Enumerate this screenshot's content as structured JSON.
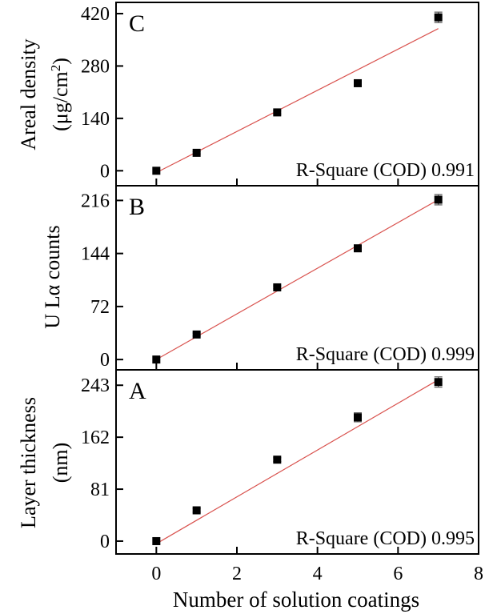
{
  "chart_data": [
    {
      "type": "scatter",
      "panel_label": "C",
      "ylabel_main": "Areal density",
      "ylabel_unit_prefix": "(μg/cm",
      "ylabel_unit_sup": "2",
      "ylabel_unit_suffix": ")",
      "xlim": [
        -1,
        8
      ],
      "ylim": [
        -40,
        450
      ],
      "yticks": [
        0,
        140,
        280,
        420
      ],
      "ytick_labels": [
        "0",
        "140",
        "280",
        "420"
      ],
      "points": [
        {
          "x": 0,
          "y": 0,
          "err": 0
        },
        {
          "x": 1,
          "y": 48,
          "err": 3
        },
        {
          "x": 3,
          "y": 156,
          "err": 4
        },
        {
          "x": 5,
          "y": 234,
          "err": 5
        },
        {
          "x": 7,
          "y": 410,
          "err": 14
        }
      ],
      "fit": {
        "slope": 55.0,
        "intercept": -5
      },
      "annotation": "R-Square (COD) 0.991",
      "marker_color": "#000000",
      "fit_color": "#d9534f"
    },
    {
      "type": "scatter",
      "panel_label": "B",
      "ylabel_main": "U Lα counts",
      "xlim": [
        -1,
        8
      ],
      "ylim": [
        -14,
        236
      ],
      "yticks": [
        0,
        72,
        144,
        216
      ],
      "ytick_labels": [
        "0",
        "72",
        "144",
        "216"
      ],
      "points": [
        {
          "x": 0,
          "y": 0,
          "err": 0
        },
        {
          "x": 1,
          "y": 34,
          "err": 2
        },
        {
          "x": 3,
          "y": 98,
          "err": 2
        },
        {
          "x": 5,
          "y": 151,
          "err": 3
        },
        {
          "x": 7,
          "y": 217,
          "err": 7
        }
      ],
      "fit": {
        "slope": 31.0,
        "intercept": 0
      },
      "annotation": "R-Square (COD) 0.999",
      "marker_color": "#000000",
      "fit_color": "#d9534f"
    },
    {
      "type": "scatter",
      "panel_label": "A",
      "ylabel_main": "Layer thickness",
      "ylabel_unit": "(nm)",
      "xlabel": "Number of solution coatings",
      "xlim": [
        -1,
        8
      ],
      "ylim": [
        -20,
        267
      ],
      "xticks": [
        0,
        2,
        4,
        6,
        8
      ],
      "xtick_labels": [
        "0",
        "2",
        "4",
        "6",
        "8"
      ],
      "yticks": [
        0,
        81,
        162,
        243
      ],
      "ytick_labels": [
        "0",
        "81",
        "162",
        "243"
      ],
      "points": [
        {
          "x": 0,
          "y": 0,
          "err": 0
        },
        {
          "x": 1,
          "y": 48,
          "err": 3
        },
        {
          "x": 3,
          "y": 127,
          "err": 3
        },
        {
          "x": 5,
          "y": 193,
          "err": 7
        },
        {
          "x": 7,
          "y": 248,
          "err": 8
        }
      ],
      "fit": {
        "slope": 36.5,
        "intercept": -4
      },
      "annotation": "R-Square (COD) 0.995",
      "marker_color": "#000000",
      "fit_color": "#d9534f"
    }
  ]
}
